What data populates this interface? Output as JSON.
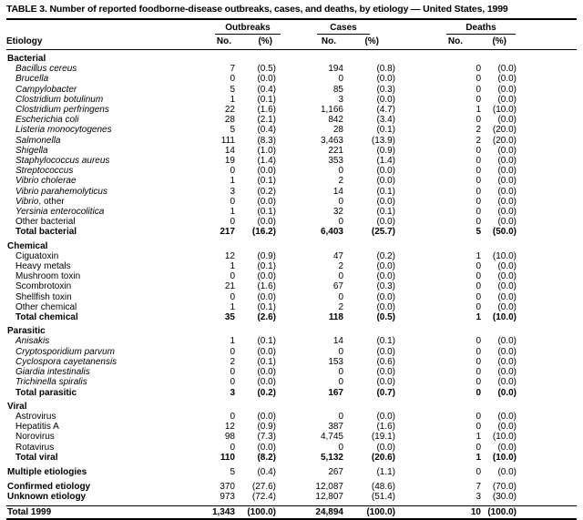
{
  "title": "TABLE 3. Number of reported foodborne-disease outbreaks, cases, and deaths, by etiology — United States, 1999",
  "columns": {
    "etiology": "Etiology",
    "groups": [
      {
        "label": "Outbreaks"
      },
      {
        "label": "Cases"
      },
      {
        "label": "Deaths"
      }
    ],
    "sub": {
      "no": "No.",
      "pct": "(%)"
    }
  },
  "sections": [
    {
      "header": "Bacterial",
      "rows": [
        {
          "label": "Bacillus cereus",
          "italic": true,
          "values": [
            "7",
            "(0.5)",
            "194",
            "(0.8)",
            "0",
            "(0.0)"
          ]
        },
        {
          "label": "Brucella",
          "italic": true,
          "values": [
            "0",
            "(0.0)",
            "0",
            "(0.0)",
            "0",
            "(0.0)"
          ]
        },
        {
          "label": "Campylobacter",
          "italic": true,
          "values": [
            "5",
            "(0.4)",
            "85",
            "(0.3)",
            "0",
            "(0.0)"
          ]
        },
        {
          "label": "Clostridium botulinum",
          "italic": true,
          "values": [
            "1",
            "(0.1)",
            "3",
            "(0.0)",
            "0",
            "(0.0)"
          ]
        },
        {
          "label": "Clostridium perfringens",
          "italic": true,
          "values": [
            "22",
            "(1.6)",
            "1,166",
            "(4.7)",
            "1",
            "(10.0)"
          ]
        },
        {
          "label": "Escherichia coli",
          "italic": true,
          "values": [
            "28",
            "(2.1)",
            "842",
            "(3.4)",
            "0",
            "(0.0)"
          ]
        },
        {
          "label": "Listeria monocytogenes",
          "italic": true,
          "values": [
            "5",
            "(0.4)",
            "28",
            "(0.1)",
            "2",
            "(20.0)"
          ]
        },
        {
          "label": "Salmonella",
          "italic": true,
          "values": [
            "111",
            "(8.3)",
            "3,463",
            "(13.9)",
            "2",
            "(20.0)"
          ]
        },
        {
          "label": "Shigella",
          "italic": true,
          "values": [
            "14",
            "(1.0)",
            "221",
            "(0.9)",
            "0",
            "(0.0)"
          ]
        },
        {
          "label": "Staphylococcus aureus",
          "italic": true,
          "values": [
            "19",
            "(1.4)",
            "353",
            "(1.4)",
            "0",
            "(0.0)"
          ]
        },
        {
          "label": "Streptococcus",
          "italic": true,
          "values": [
            "0",
            "(0.0)",
            "0",
            "(0.0)",
            "0",
            "(0.0)"
          ]
        },
        {
          "label": "Vibrio cholerae",
          "italic": true,
          "values": [
            "1",
            "(0.1)",
            "2",
            "(0.0)",
            "0",
            "(0.0)"
          ]
        },
        {
          "label": "Vibrio parahemolyticus",
          "italic": true,
          "values": [
            "3",
            "(0.2)",
            "14",
            "(0.1)",
            "0",
            "(0.0)"
          ]
        },
        {
          "label": "Vibrio",
          "suffix": ", other",
          "italic": true,
          "values": [
            "0",
            "(0.0)",
            "0",
            "(0.0)",
            "0",
            "(0.0)"
          ]
        },
        {
          "label": "Yersinia enterocolitica",
          "italic": true,
          "values": [
            "1",
            "(0.1)",
            "32",
            "(0.1)",
            "0",
            "(0.0)"
          ]
        },
        {
          "label": "Other bacterial",
          "italic": false,
          "values": [
            "0",
            "(0.0)",
            "0",
            "(0.0)",
            "0",
            "(0.0)"
          ]
        },
        {
          "label": "Total bacterial",
          "italic": false,
          "bold": true,
          "values": [
            "217",
            "(16.2)",
            "6,403",
            "(25.7)",
            "5",
            "(50.0)"
          ]
        }
      ]
    },
    {
      "header": "Chemical",
      "rows": [
        {
          "label": "Ciguatoxin",
          "italic": false,
          "values": [
            "12",
            "(0.9)",
            "47",
            "(0.2)",
            "1",
            "(10.0)"
          ]
        },
        {
          "label": "Heavy metals",
          "italic": false,
          "values": [
            "1",
            "(0.1)",
            "2",
            "(0.0)",
            "0",
            "(0.0)"
          ]
        },
        {
          "label": "Mushroom toxin",
          "italic": false,
          "values": [
            "0",
            "(0.0)",
            "0",
            "(0.0)",
            "0",
            "(0.0)"
          ]
        },
        {
          "label": "Scombrotoxin",
          "italic": false,
          "values": [
            "21",
            "(1.6)",
            "67",
            "(0.3)",
            "0",
            "(0.0)"
          ]
        },
        {
          "label": "Shellfish toxin",
          "italic": false,
          "values": [
            "0",
            "(0.0)",
            "0",
            "(0.0)",
            "0",
            "(0.0)"
          ]
        },
        {
          "label": "Other chemical",
          "italic": false,
          "values": [
            "1",
            "(0.1)",
            "2",
            "(0.0)",
            "0",
            "(0.0)"
          ]
        },
        {
          "label": "Total chemical",
          "italic": false,
          "bold": true,
          "values": [
            "35",
            "(2.6)",
            "118",
            "(0.5)",
            "1",
            "(10.0)"
          ]
        }
      ]
    },
    {
      "header": "Parasitic",
      "rows": [
        {
          "label": "Anisakis",
          "italic": true,
          "values": [
            "1",
            "(0.1)",
            "14",
            "(0.1)",
            "0",
            "(0.0)"
          ]
        },
        {
          "label": "Cryptosporidium parvum",
          "italic": true,
          "values": [
            "0",
            "(0.0)",
            "0",
            "(0.0)",
            "0",
            "(0.0)"
          ]
        },
        {
          "label": "Cyclospora cayetanensis",
          "italic": true,
          "values": [
            "2",
            "(0.1)",
            "153",
            "(0.6)",
            "0",
            "(0.0)"
          ]
        },
        {
          "label": "Giardia intestinalis",
          "italic": true,
          "values": [
            "0",
            "(0.0)",
            "0",
            "(0.0)",
            "0",
            "(0.0)"
          ]
        },
        {
          "label": "Trichinella spiralis",
          "italic": true,
          "values": [
            "0",
            "(0.0)",
            "0",
            "(0.0)",
            "0",
            "(0.0)"
          ]
        },
        {
          "label": "Total parasitic",
          "italic": false,
          "bold": true,
          "values": [
            "3",
            "(0.2)",
            "167",
            "(0.7)",
            "0",
            "(0.0)"
          ]
        }
      ]
    },
    {
      "header": "Viral",
      "rows": [
        {
          "label": "Astrovirus",
          "italic": false,
          "values": [
            "0",
            "(0.0)",
            "0",
            "(0.0)",
            "0",
            "(0.0)"
          ]
        },
        {
          "label": "Hepatitis A",
          "italic": false,
          "values": [
            "12",
            "(0.9)",
            "387",
            "(1.6)",
            "0",
            "(0.0)"
          ]
        },
        {
          "label": "Norovirus",
          "italic": false,
          "values": [
            "98",
            "(7.3)",
            "4,745",
            "(19.1)",
            "1",
            "(10.0)"
          ]
        },
        {
          "label": "Rotavirus",
          "italic": false,
          "values": [
            "0",
            "(0.0)",
            "0",
            "(0.0)",
            "0",
            "(0.0)"
          ]
        },
        {
          "label": "Total viral",
          "italic": false,
          "bold": true,
          "values": [
            "110",
            "(8.2)",
            "5,132",
            "(20.6)",
            "1",
            "(10.0)"
          ]
        }
      ]
    }
  ],
  "summary_rows": [
    {
      "label": "Multiple etiologies",
      "gap_before": true,
      "values": [
        "5",
        "(0.4)",
        "267",
        "(1.1)",
        "0",
        "(0.0)"
      ]
    },
    {
      "label": "Confirmed etiology",
      "gap_before": true,
      "values": [
        "370",
        "(27.6)",
        "12,087",
        "(48.6)",
        "7",
        "(70.0)"
      ]
    },
    {
      "label": "Unknown etiology",
      "gap_before": false,
      "values": [
        "973",
        "(72.4)",
        "12,807",
        "(51.4)",
        "3",
        "(30.0)"
      ]
    }
  ],
  "total_row": {
    "label": "Total 1999",
    "bold": true,
    "values": [
      "1,343",
      "(100.0)",
      "24,894",
      "(100.0)",
      "10",
      "(100.0)"
    ]
  }
}
